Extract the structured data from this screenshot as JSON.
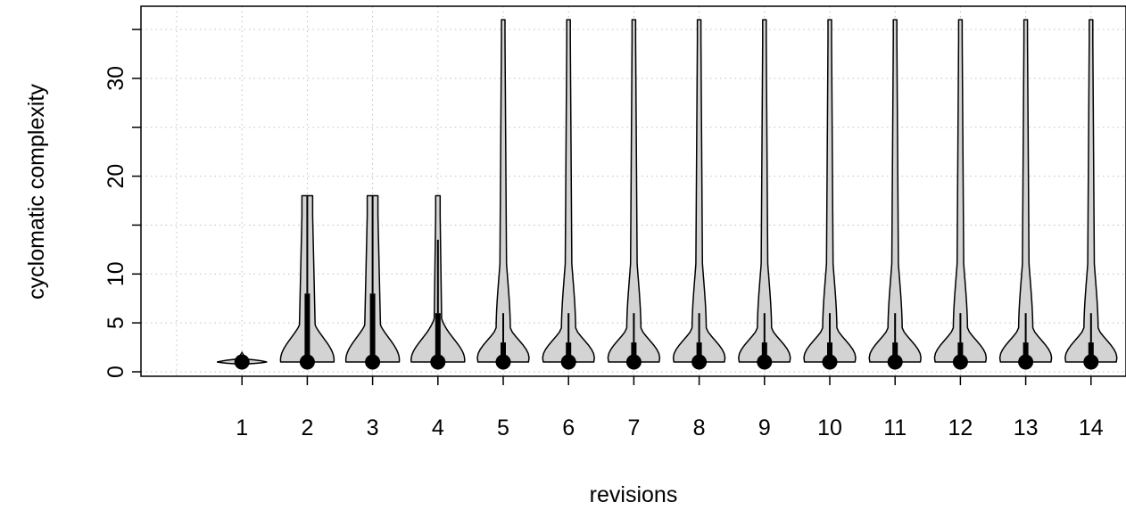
{
  "chart_data": {
    "type": "violin",
    "title": "",
    "xlabel": "revisions",
    "ylabel": "cyclomatic complexity",
    "categories": [
      "1",
      "2",
      "3",
      "4",
      "5",
      "6",
      "7",
      "8",
      "9",
      "10",
      "11",
      "12",
      "13",
      "14"
    ],
    "yticks": [
      0,
      5,
      10,
      20,
      30
    ],
    "ylim": [
      0,
      35
    ],
    "grid": true,
    "colors": {
      "fill": "#d3d3d3",
      "stroke": "#000000",
      "grid": "#bfbfbf"
    },
    "violins": [
      {
        "category": "1",
        "min": 1,
        "q1": 1,
        "median": 1,
        "q3": 1,
        "max": 2,
        "whisker_high": 1,
        "profile": "tiny"
      },
      {
        "category": "2",
        "min": 1,
        "q1": 1,
        "median": 1,
        "q3": 8,
        "max": 18,
        "whisker_high": 18,
        "profile": "early"
      },
      {
        "category": "3",
        "min": 1,
        "q1": 1,
        "median": 1,
        "q3": 8,
        "max": 18,
        "whisker_high": 18,
        "profile": "early"
      },
      {
        "category": "4",
        "min": 1,
        "q1": 1,
        "median": 1,
        "q3": 6,
        "max": 18,
        "whisker_high": 13.5,
        "profile": "early-narrow"
      },
      {
        "category": "5",
        "min": 1,
        "q1": 1,
        "median": 1,
        "q3": 3,
        "max": 36,
        "whisker_high": 6,
        "profile": "long"
      },
      {
        "category": "6",
        "min": 1,
        "q1": 1,
        "median": 1,
        "q3": 3,
        "max": 36,
        "whisker_high": 6,
        "profile": "long"
      },
      {
        "category": "7",
        "min": 1,
        "q1": 1,
        "median": 1,
        "q3": 3,
        "max": 36,
        "whisker_high": 6,
        "profile": "long"
      },
      {
        "category": "8",
        "min": 1,
        "q1": 1,
        "median": 1,
        "q3": 3,
        "max": 36,
        "whisker_high": 6,
        "profile": "long"
      },
      {
        "category": "9",
        "min": 1,
        "q1": 1,
        "median": 1,
        "q3": 3,
        "max": 36,
        "whisker_high": 6,
        "profile": "long"
      },
      {
        "category": "10",
        "min": 1,
        "q1": 1,
        "median": 1,
        "q3": 3,
        "max": 36,
        "whisker_high": 6,
        "profile": "long"
      },
      {
        "category": "11",
        "min": 1,
        "q1": 1,
        "median": 1,
        "q3": 3,
        "max": 36,
        "whisker_high": 6,
        "profile": "long"
      },
      {
        "category": "12",
        "min": 1,
        "q1": 1,
        "median": 1,
        "q3": 3,
        "max": 36,
        "whisker_high": 6,
        "profile": "long"
      },
      {
        "category": "13",
        "min": 1,
        "q1": 1,
        "median": 1,
        "q3": 3,
        "max": 36,
        "whisker_high": 6,
        "profile": "long"
      },
      {
        "category": "14",
        "min": 1,
        "q1": 1,
        "median": 1,
        "q3": 3,
        "max": 36,
        "whisker_high": 6,
        "profile": "long"
      }
    ]
  }
}
